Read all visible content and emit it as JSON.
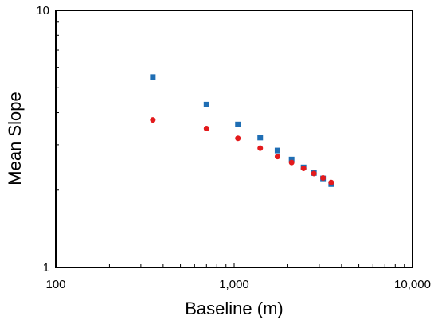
{
  "chart_data": {
    "type": "scatter",
    "title": "",
    "xlabel": "Baseline (m)",
    "ylabel": "Mean Slope",
    "xscale": "log",
    "yscale": "log",
    "xlim": [
      100,
      10000
    ],
    "ylim": [
      1,
      10
    ],
    "x_ticks": [
      {
        "value": 100,
        "label": "100"
      },
      {
        "value": 1000,
        "label": "1,000"
      },
      {
        "value": 10000,
        "label": "10,000"
      }
    ],
    "y_ticks": [
      {
        "value": 1,
        "label": "1"
      },
      {
        "value": 10,
        "label": "10"
      }
    ],
    "grid": false,
    "legend": "none",
    "series": [
      {
        "marker": "square",
        "color": "#1f6eb4",
        "x": [
          350,
          700,
          1050,
          1400,
          1750,
          2100,
          2450,
          2800,
          3150,
          3500
        ],
        "y": [
          5.5,
          4.3,
          3.6,
          3.2,
          2.85,
          2.63,
          2.45,
          2.33,
          2.22,
          2.11
        ]
      },
      {
        "marker": "circle",
        "color": "#e31a1c",
        "x": [
          350,
          700,
          1050,
          1400,
          1750,
          2100,
          2450,
          2800,
          3150,
          3500
        ],
        "y": [
          3.75,
          3.47,
          3.18,
          2.91,
          2.7,
          2.56,
          2.43,
          2.32,
          2.23,
          2.14
        ]
      }
    ]
  }
}
